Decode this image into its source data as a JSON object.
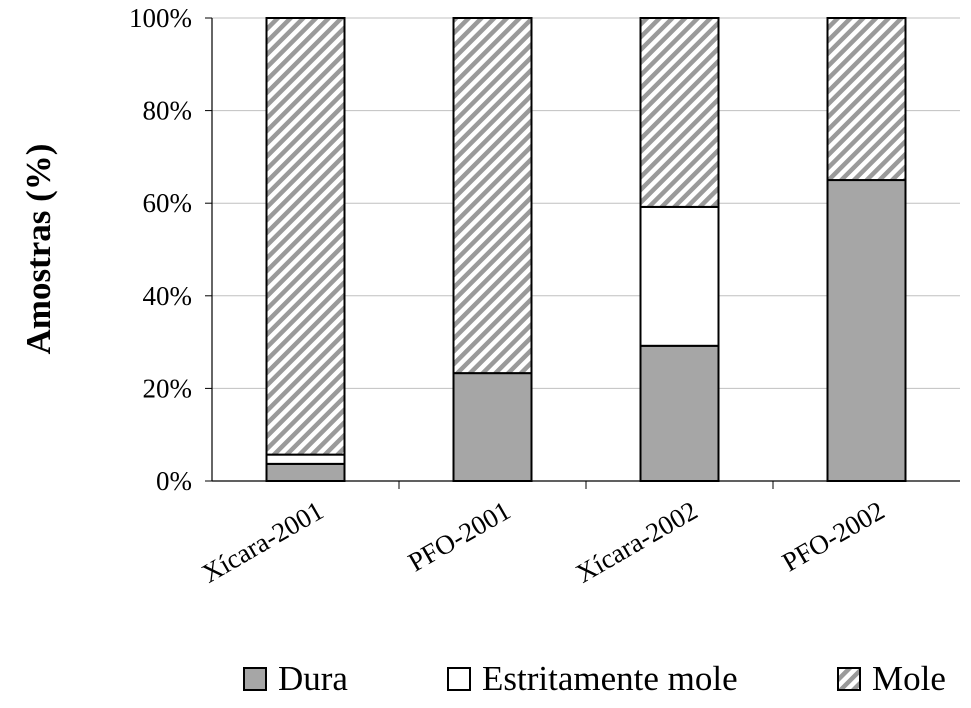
{
  "chart_data": {
    "type": "bar",
    "stacked": true,
    "percent_stacked": true,
    "categories": [
      "Xícara-2001",
      "PFO-2001",
      "Xícara-2002",
      "PFO-2002"
    ],
    "series": [
      {
        "name": "Dura",
        "values": [
          3.7,
          23.3,
          29.2,
          65.0
        ]
      },
      {
        "name": "Estritamente mole",
        "values": [
          2.0,
          0.0,
          30.0,
          0.0
        ]
      },
      {
        "name": "Mole",
        "values": [
          94.3,
          76.7,
          40.8,
          35.0
        ]
      }
    ],
    "ylabel": "Amostras (%)",
    "xlabel": "",
    "ylim": [
      0,
      100
    ],
    "y_ticks": [
      "0%",
      "20%",
      "40%",
      "60%",
      "80%",
      "100%"
    ],
    "y_tick_values": [
      0,
      20,
      40,
      60,
      80,
      100
    ],
    "grid": "horizontal",
    "legend_position": "bottom",
    "colors": {
      "Dura": "#a6a6a6",
      "Estritamente mole": "#ffffff",
      "Mole": "hatch-diagonal-gray",
      "gridline": "#c0c0c0",
      "axis": "#000000"
    }
  }
}
